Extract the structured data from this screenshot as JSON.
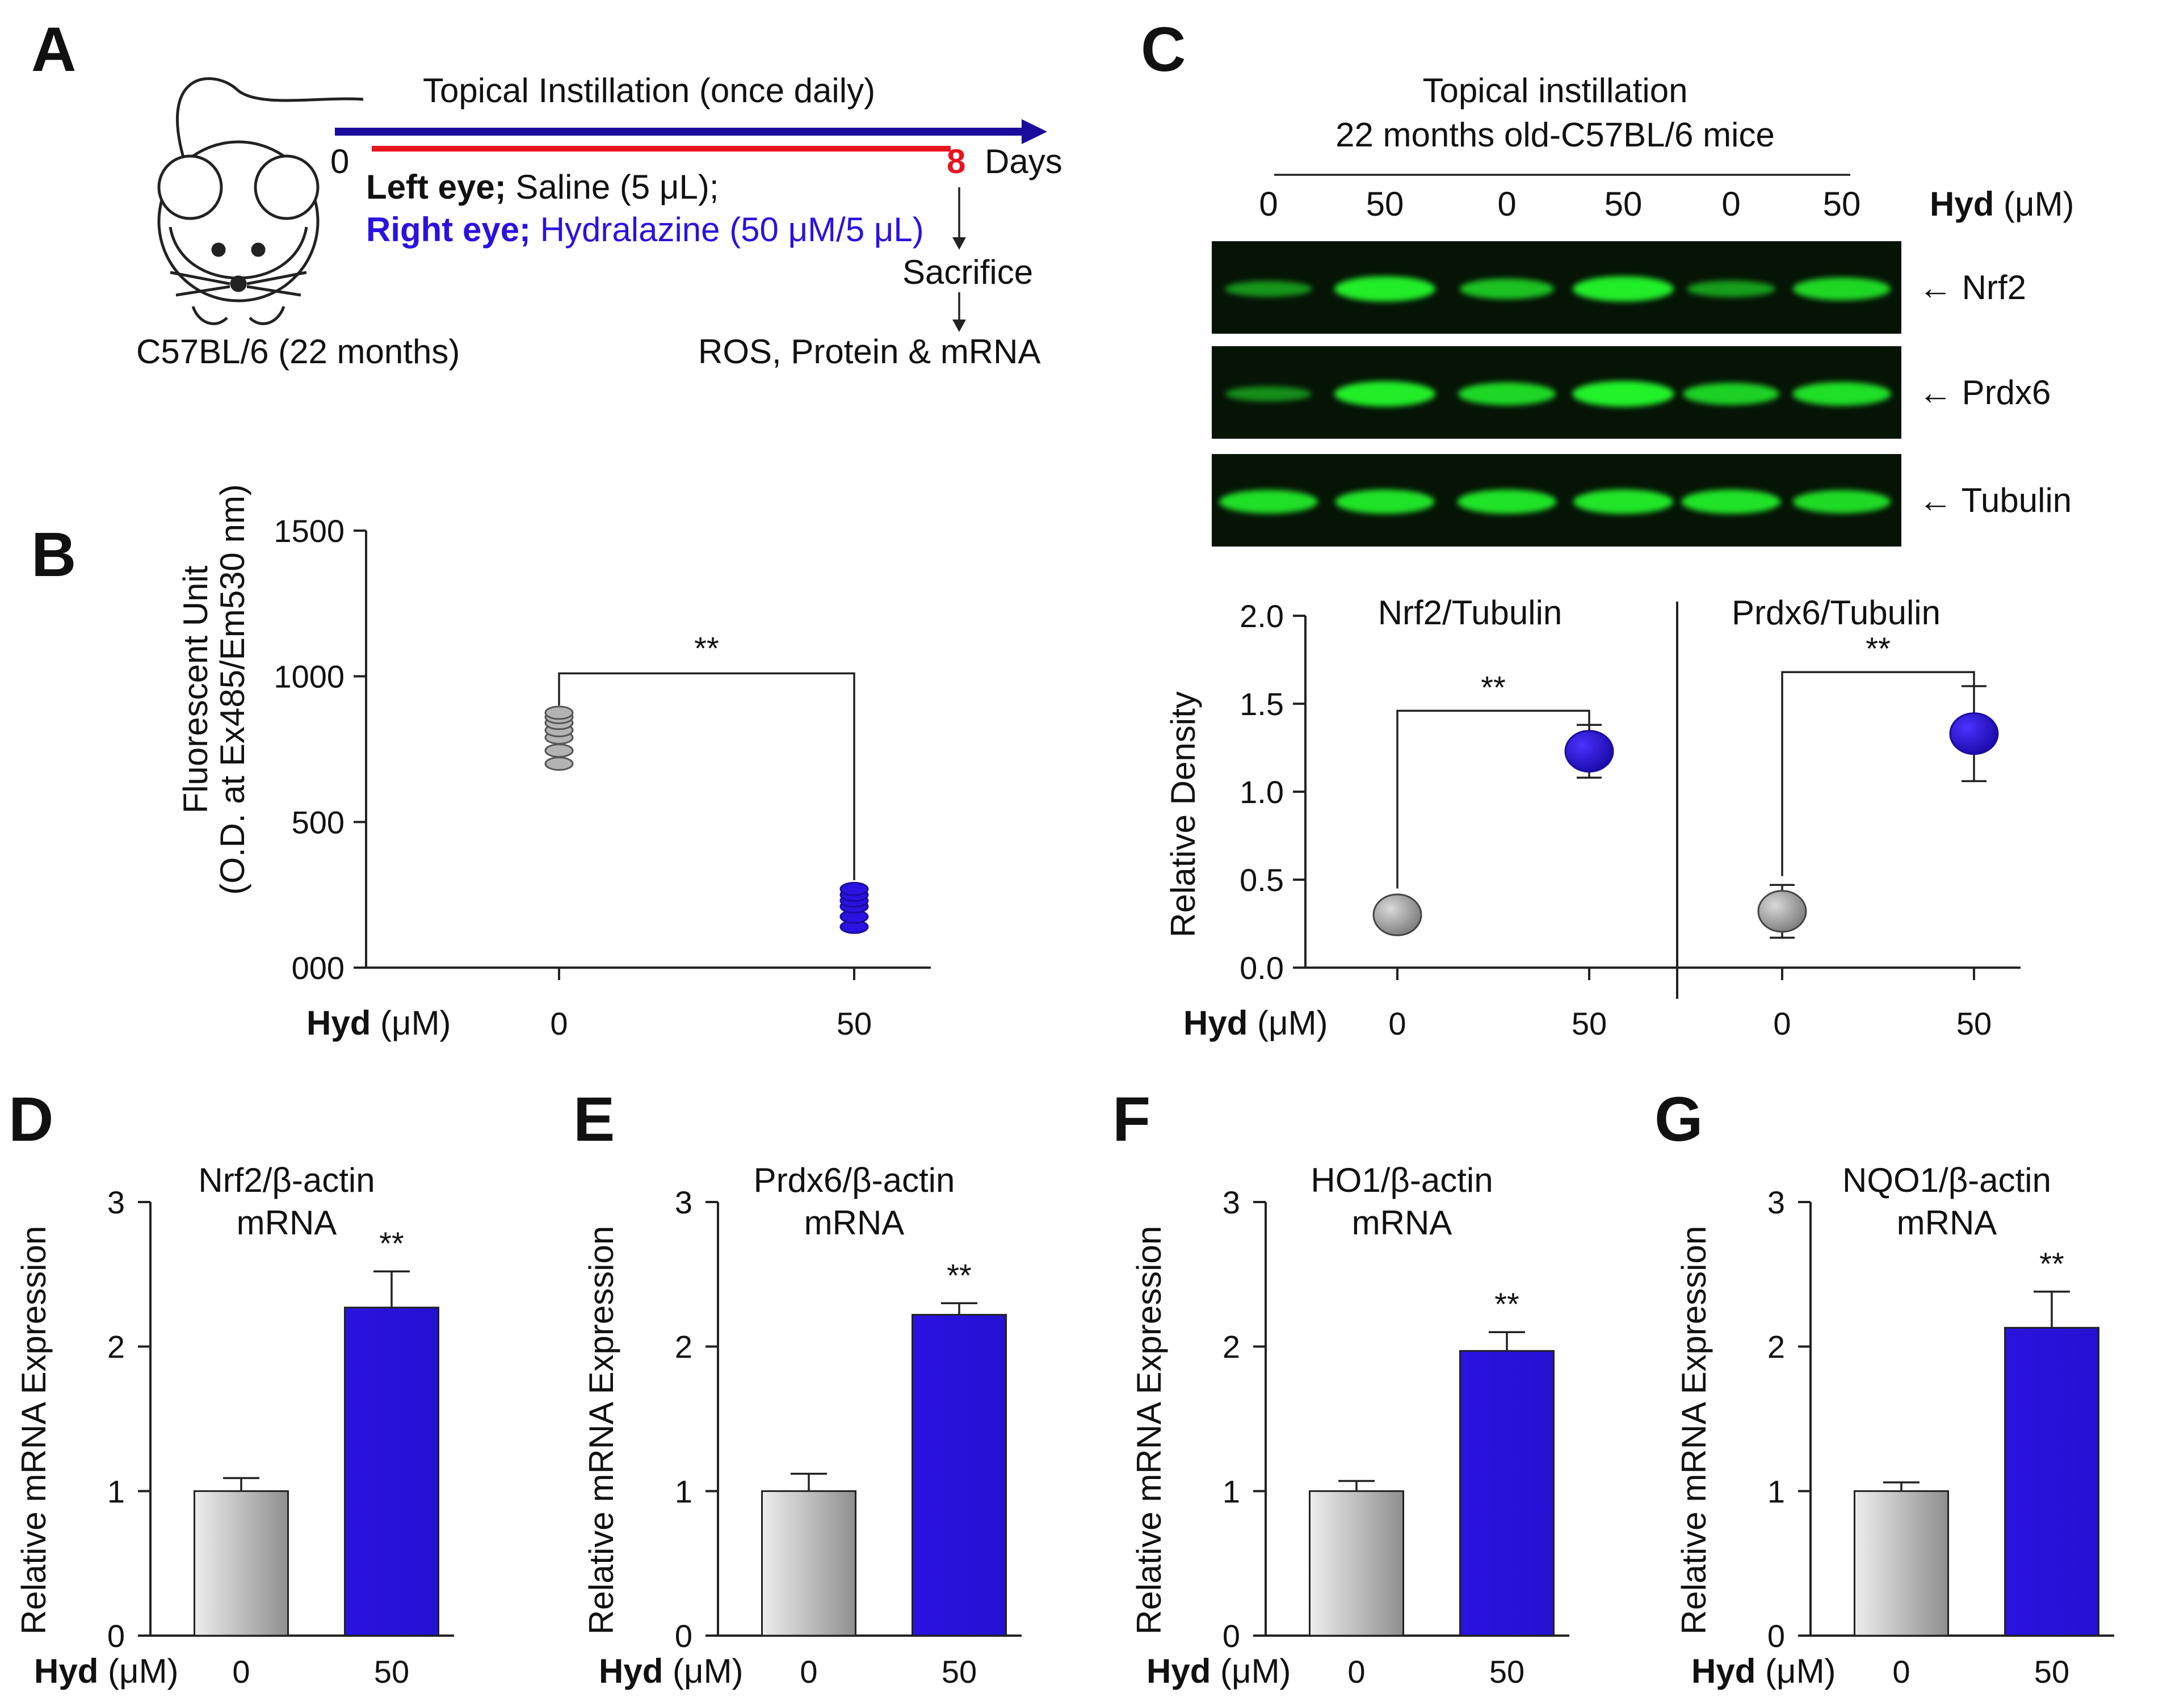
{
  "colors": {
    "blue": "#2a12e0",
    "blue_dark": "#1a0d9e",
    "gray": "#a8a8a8",
    "gray_dark": "#555555",
    "red": "#e8141e",
    "band_green": "#22f52a",
    "blot_bg": "#061406"
  },
  "panelA": {
    "letter": "A",
    "title": "Topical Instillation  (once daily)",
    "day_start": "0",
    "day_end": "8",
    "days_label": "Days",
    "left_eye_bold": "Left eye;",
    "left_eye_text": " Saline (5 μL);",
    "right_eye_bold": "Right eye;",
    "right_eye_text": " Hydralazine (50 μM/5 μL)",
    "sacrifice": "Sacrifice",
    "assays": "ROS, Protein & mRNA",
    "mouse_label": "C57BL/6 (22 months)",
    "mouse_icon": "mouse-icon"
  },
  "panelB": {
    "letter": "B",
    "ylabel_line1": "Fluorescent Unit",
    "ylabel_line2": "(O.D. at Ex485/Em530 nm)",
    "yticks": [
      "000",
      "500",
      "1000",
      "1500"
    ],
    "hyd_bold": "Hyd",
    "hyd_unit": " (μM)",
    "xticks": [
      "0",
      "50"
    ],
    "sig": "**"
  },
  "panelC": {
    "letter": "C",
    "title_line1": "Topical instillation",
    "title_line2": "22 months old-C57BL/6 mice",
    "lane_labels": [
      "0",
      "50",
      "0",
      "50",
      "0",
      "50"
    ],
    "hyd_bold": "Hyd",
    "hyd_unit": " (μM)",
    "blots": [
      {
        "protein": "Nrf2",
        "label": "← Nrf2"
      },
      {
        "protein": "Prdx6",
        "label": "← Prdx6"
      },
      {
        "protein": "Tubulin",
        "label": "← Tubulin"
      }
    ],
    "ylabel": "Relative Density",
    "yticks": [
      "0.0",
      "0.5",
      "1.0",
      "1.5",
      "2.0"
    ],
    "sub_titles": [
      "Nrf2/Tubulin",
      "Prdx6/Tubulin"
    ],
    "xticks": [
      "0",
      "50",
      "0",
      "50"
    ],
    "sig": [
      "**",
      "**"
    ]
  },
  "bar_panels": [
    {
      "letter": "D",
      "title_line1": "Nrf2/β-actin",
      "title_line2": "mRNA",
      "ylabel": "Relative mRNA Expression",
      "yticks": [
        "0",
        "1",
        "2",
        "3"
      ],
      "hyd_bold": "Hyd",
      "hyd_unit": " (μM)",
      "xticks": [
        "0",
        "50"
      ],
      "sig": "**"
    },
    {
      "letter": "E",
      "title_line1": "Prdx6/β-actin",
      "title_line2": "mRNA",
      "ylabel": "Relative mRNA Expression",
      "yticks": [
        "0",
        "1",
        "2",
        "3"
      ],
      "hyd_bold": "Hyd",
      "hyd_unit": " (μM)",
      "xticks": [
        "0",
        "50"
      ],
      "sig": "**"
    },
    {
      "letter": "F",
      "title_line1": "HO1/β-actin",
      "title_line2": "mRNA",
      "ylabel": "Relative mRNA Expression",
      "yticks": [
        "0",
        "1",
        "2",
        "3"
      ],
      "hyd_bold": "Hyd",
      "hyd_unit": " (μM)",
      "xticks": [
        "0",
        "50"
      ],
      "sig": "**"
    },
    {
      "letter": "G",
      "title_line1": "NQO1/β-actin",
      "title_line2": "mRNA",
      "ylabel": "Relative mRNA Expression",
      "yticks": [
        "0",
        "1",
        "2",
        "3"
      ],
      "hyd_bold": "Hyd",
      "hyd_unit": " (μM)",
      "xticks": [
        "0",
        "50"
      ],
      "sig": "**"
    }
  ],
  "chart_data": [
    {
      "panel": "B",
      "type": "scatter",
      "ylabel": "Fluorescent Unit (O.D. at Ex485/Em530 nm)",
      "xlabel": "Hyd (μM)",
      "categories": [
        "0",
        "50"
      ],
      "ylim": [
        0,
        1500
      ],
      "series": [
        {
          "category": "0",
          "values": [
            700,
            745,
            790,
            815,
            840,
            860,
            875
          ]
        },
        {
          "category": "50",
          "values": [
            140,
            175,
            210,
            230,
            250,
            270
          ]
        }
      ],
      "annotation": "**"
    },
    {
      "panel": "C-left",
      "type": "scatter",
      "title": "Nrf2/Tubulin",
      "ylabel": "Relative Density",
      "xlabel": "Hyd (μM)",
      "categories": [
        "0",
        "50"
      ],
      "ylim": [
        0,
        2.0
      ],
      "values": [
        0.3,
        1.23
      ],
      "error": [
        0.1,
        0.15
      ],
      "annotation": "**"
    },
    {
      "panel": "C-right",
      "type": "scatter",
      "title": "Prdx6/Tubulin",
      "ylabel": "Relative Density",
      "xlabel": "Hyd (μM)",
      "categories": [
        "0",
        "50"
      ],
      "ylim": [
        0,
        2.0
      ],
      "values": [
        0.32,
        1.33
      ],
      "error": [
        0.15,
        0.27
      ],
      "annotation": "**"
    },
    {
      "panel": "C-blot",
      "type": "table",
      "lanes": [
        "0",
        "50",
        "0",
        "50",
        "0",
        "50"
      ],
      "band_intensity": {
        "Nrf2": [
          0.35,
          0.95,
          0.65,
          0.95,
          0.4,
          0.8
        ],
        "Prdx6": [
          0.3,
          0.95,
          0.8,
          0.98,
          0.75,
          0.85
        ],
        "Tubulin": [
          0.85,
          0.88,
          0.88,
          0.9,
          0.88,
          0.82
        ]
      }
    },
    {
      "panel": "D",
      "type": "bar",
      "title": "Nrf2/β-actin mRNA",
      "ylabel": "Relative mRNA Expression",
      "xlabel": "Hyd (μM)",
      "categories": [
        "0",
        "50"
      ],
      "values": [
        1.0,
        2.27
      ],
      "error": [
        0.09,
        0.25
      ],
      "ylim": [
        0,
        3
      ],
      "annotation": "**"
    },
    {
      "panel": "E",
      "type": "bar",
      "title": "Prdx6/β-actin mRNA",
      "ylabel": "Relative mRNA Expression",
      "xlabel": "Hyd (μM)",
      "categories": [
        "0",
        "50"
      ],
      "values": [
        1.0,
        2.22
      ],
      "error": [
        0.12,
        0.08
      ],
      "ylim": [
        0,
        3
      ],
      "annotation": "**"
    },
    {
      "panel": "F",
      "type": "bar",
      "title": "HO1/β-actin mRNA",
      "ylabel": "Relative mRNA Expression",
      "xlabel": "Hyd (μM)",
      "categories": [
        "0",
        "50"
      ],
      "values": [
        1.0,
        1.97
      ],
      "error": [
        0.07,
        0.13
      ],
      "ylim": [
        0,
        3
      ],
      "annotation": "**"
    },
    {
      "panel": "G",
      "type": "bar",
      "title": "NQO1/β-actin mRNA",
      "ylabel": "Relative mRNA Expression",
      "xlabel": "Hyd (μM)",
      "categories": [
        "0",
        "50"
      ],
      "values": [
        1.0,
        2.13
      ],
      "error": [
        0.06,
        0.25
      ],
      "ylim": [
        0,
        3
      ],
      "annotation": "**"
    }
  ]
}
